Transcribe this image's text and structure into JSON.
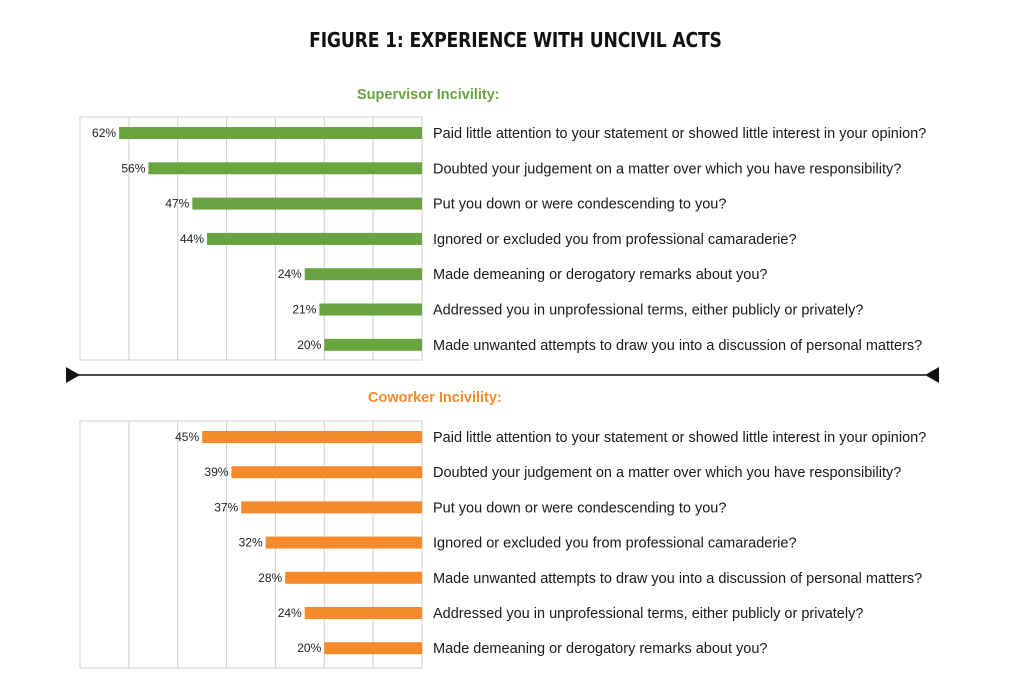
{
  "title": "FIGURE 1: EXPERIENCE WITH UNCIVIL ACTS",
  "chart_data": [
    {
      "type": "bar",
      "orientation": "horizontal-reversed",
      "title": "Supervisor Incivility:",
      "color": "#6aa341",
      "xlim": [
        0,
        70
      ],
      "grid": true,
      "categories": [
        "Paid little attention to your statement or showed little interest in your opinion?",
        "Doubted your judgement on a matter over which you have responsibility?",
        "Put you down or were condescending to you?",
        "Ignored or excluded you from professional camaraderie?",
        "Made demeaning or derogatory remarks about you?",
        "Addressed you in unprofessional terms, either publicly or privately?",
        "Made unwanted attempts to draw you into a discussion of personal matters?"
      ],
      "values": [
        62,
        56,
        47,
        44,
        24,
        21,
        20
      ],
      "value_labels": [
        "62%",
        "56%",
        "47%",
        "44%",
        "24%",
        "21%",
        "20%"
      ]
    },
    {
      "type": "bar",
      "orientation": "horizontal-reversed",
      "title": "Coworker Incivility:",
      "color": "#f58a2a",
      "xlim": [
        0,
        70
      ],
      "grid": true,
      "categories": [
        "Paid little attention to your statement or showed little interest in your opinion?",
        "Doubted your judgement on a matter over which you have responsibility?",
        "Put you down or were condescending to you?",
        "Ignored or excluded you from professional camaraderie?",
        "Made unwanted attempts to draw you into a discussion of personal matters?",
        "Addressed you in unprofessional terms, either publicly or privately?",
        "Made demeaning or derogatory remarks about you?"
      ],
      "values": [
        45,
        39,
        37,
        32,
        28,
        24,
        20
      ],
      "value_labels": [
        "45%",
        "39%",
        "37%",
        "32%",
        "28%",
        "24%",
        "20%"
      ]
    }
  ]
}
